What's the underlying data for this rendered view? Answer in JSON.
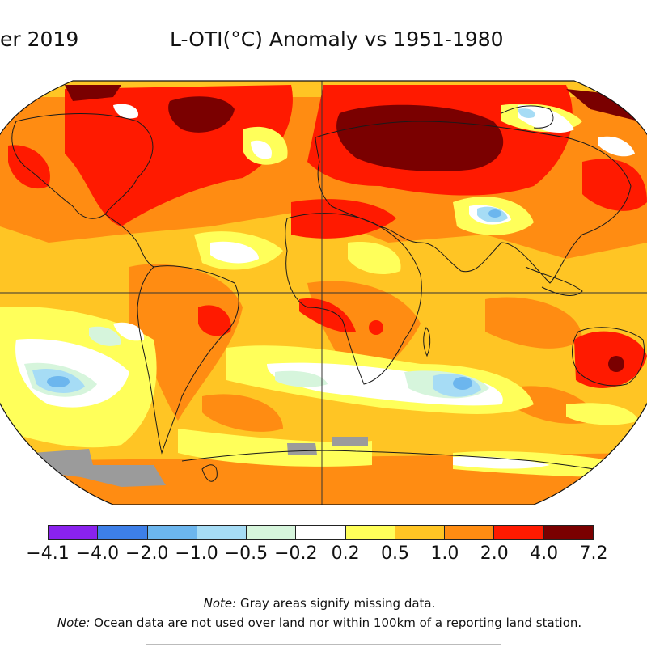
{
  "title": {
    "left": "er 2019",
    "main": "L-OTI(°C) Anomaly vs 1951-1980"
  },
  "legend": {
    "ticks": [
      "−4.1",
      "−4.0",
      "−2.0",
      "−1.0",
      "−0.5",
      "−0.2",
      "0.2",
      "0.5",
      "1.0",
      "2.0",
      "4.0",
      "7.2"
    ],
    "colors": [
      "#8a22ee",
      "#3d7fe8",
      "#6cb6ee",
      "#a6dcf5",
      "#d6f5dc",
      "#ffffff",
      "#ffff5a",
      "#ffc524",
      "#ff8c12",
      "#ff1a00",
      "#7a0000"
    ]
  },
  "notes": {
    "note1_label": "Note:",
    "note1_text": " Gray areas signify missing data.",
    "note2_label": "Note:",
    "note2_text": " Ocean data are not used over land nor within 100km of a reporting land station."
  },
  "map_colors": {
    "background": "#ffc524",
    "orange": "#ff8c12",
    "red": "#ff1a00",
    "darkred": "#7a0000",
    "yellow": "#ffff5a",
    "white": "#ffffff",
    "lightgreen": "#d6f5dc",
    "lightblue": "#a6dcf5",
    "blue": "#6cb6ee",
    "missing": "#9b9b9b"
  }
}
